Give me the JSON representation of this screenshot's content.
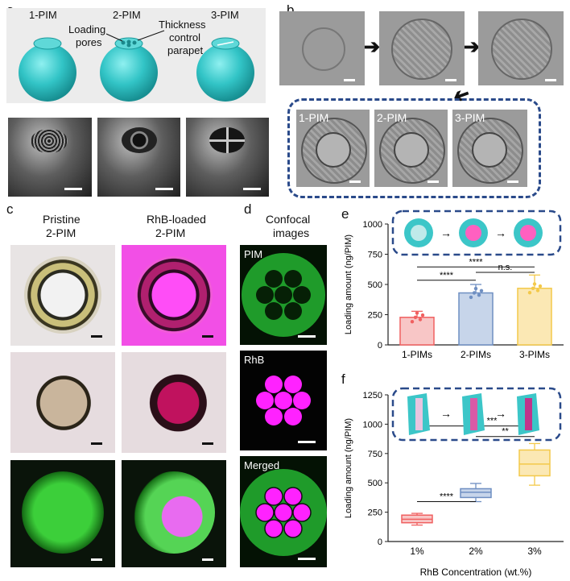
{
  "panels": {
    "a": "a",
    "b": "b",
    "c": "c",
    "d": "d",
    "e": "e",
    "f": "f"
  },
  "a": {
    "pim1": "1-PIM",
    "pim2": "2-PIM",
    "pim3": "3-PIM",
    "loading": "Loading",
    "pores": "pores",
    "thickness": "Thickness",
    "control": "control",
    "parapet": "parapet"
  },
  "b": {
    "l1": "1-PIM",
    "l2": "2-PIM",
    "l3": "3-PIM"
  },
  "c": {
    "pristine1": "Pristine",
    "pristine2": "2-PIM",
    "rhb1": "RhB-loaded",
    "rhb2": "2-PIM"
  },
  "d": {
    "title1": "Confocal",
    "title2": "images",
    "pim": "PIM",
    "rhb": "RhB",
    "merged": "Merged"
  },
  "colors": {
    "cyan": "#3cc6c8",
    "magenta": "#ff00ff",
    "green": "#22c33a",
    "dash": "#2a4a8a",
    "red": "#f06060",
    "blue": "#6f8fc2",
    "yellow": "#f3c94a"
  },
  "chart_data": [
    {
      "type": "bar",
      "panel": "e",
      "categories": [
        "1-PIMs",
        "2-PIMs",
        "3-PIMs"
      ],
      "values": [
        228,
        430,
        468
      ],
      "errors": [
        50,
        70,
        110
      ],
      "ylabel": "Loading amount (ng/PIM)",
      "yticks": [
        "0",
        "250",
        "500",
        "750",
        "1000"
      ],
      "ylim": [
        0,
        1000
      ],
      "significance": [
        {
          "pair": [
            "1-PIMs",
            "2-PIMs"
          ],
          "label": "****"
        },
        {
          "pair": [
            "1-PIMs",
            "3-PIMs"
          ],
          "label": "****"
        },
        {
          "pair": [
            "2-PIMs",
            "3-PIMs"
          ],
          "label": "n.s."
        }
      ]
    },
    {
      "type": "box",
      "panel": "f",
      "categories": [
        "1%",
        "2%",
        "3%"
      ],
      "boxes": [
        {
          "min": 140,
          "q1": 160,
          "median": 190,
          "q3": 225,
          "max": 240
        },
        {
          "min": 340,
          "q1": 375,
          "median": 420,
          "q3": 450,
          "max": 495
        },
        {
          "min": 480,
          "q1": 560,
          "median": 660,
          "q3": 780,
          "max": 835
        }
      ],
      "ylabel": "Loading amount (ng/PIM)",
      "xlabel": "RhB Concentration (wt.%)",
      "yticks": [
        "0",
        "250",
        "500",
        "750",
        "1000",
        "1250"
      ],
      "ylim": [
        0,
        1250
      ],
      "significance": [
        {
          "pair": [
            "1%",
            "2%"
          ],
          "label": "****"
        },
        {
          "pair": [
            "1%",
            "3%"
          ],
          "label": "***"
        },
        {
          "pair": [
            "2%",
            "3%"
          ],
          "label": "**"
        }
      ]
    }
  ]
}
